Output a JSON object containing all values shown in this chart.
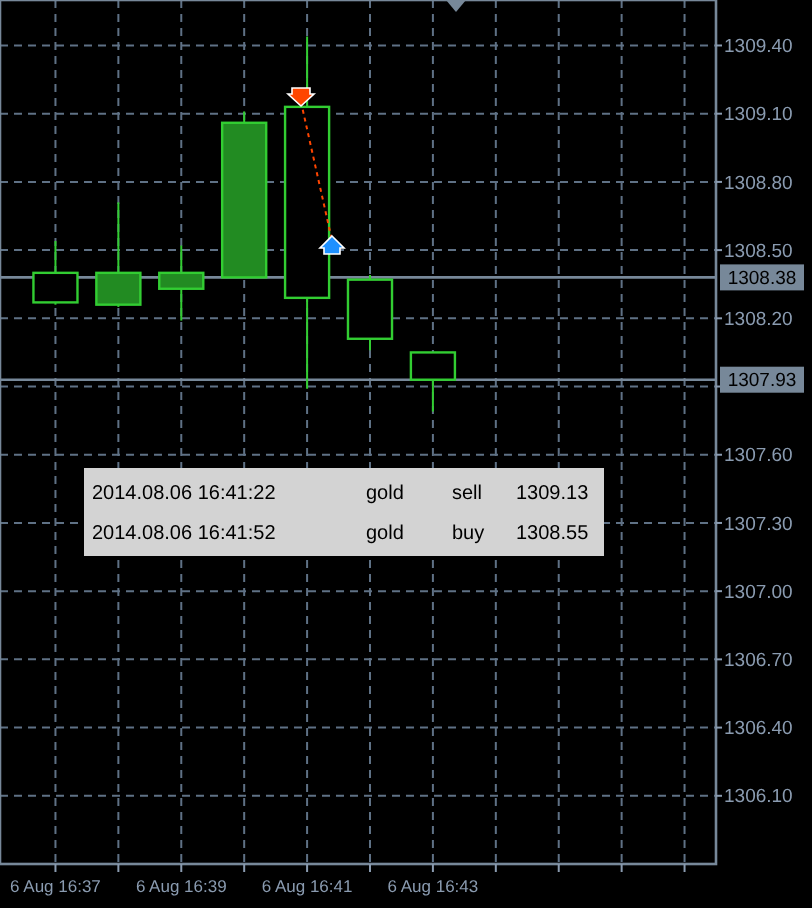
{
  "chart_data": {
    "type": "candlestick",
    "categories": [
      "6 Aug 16:37",
      null,
      "6 Aug 16:39",
      null,
      "6 Aug 16:41",
      null,
      "6 Aug 16:43",
      null,
      null,
      null,
      null
    ],
    "ohlc": [
      [
        1308.4,
        1308.54,
        1308.26,
        1308.27
      ],
      [
        1308.26,
        1308.71,
        1308.25,
        1308.4
      ],
      [
        1308.33,
        1308.52,
        1308.19,
        1308.4
      ],
      [
        1308.38,
        1309.11,
        1308.38,
        1309.06
      ],
      [
        1309.13,
        1309.44,
        1307.89,
        1308.29
      ],
      [
        1308.37,
        1308.39,
        1308.06,
        1308.11
      ],
      [
        1308.05,
        1308.05,
        1307.79,
        1307.93
      ],
      null,
      null,
      null,
      null
    ],
    "colors": [
      "#000000",
      "#228b22",
      "#228b22",
      "#228b22",
      "#000000",
      "#000000",
      "#000000",
      null,
      null,
      null,
      null
    ],
    "ylim": [
      1305.8,
      1309.6
    ],
    "yticks": [
      {
        "value": 1306.1,
        "label": "1306.10"
      },
      {
        "value": 1306.4,
        "label": "1306.40"
      },
      {
        "value": 1306.7,
        "label": "1306.70"
      },
      {
        "value": 1307.0,
        "label": "1307.00"
      },
      {
        "value": 1307.3,
        "label": "1307.30"
      },
      {
        "value": 1307.6,
        "label": "1307.60"
      },
      {
        "value": 1307.9,
        "label": null
      },
      {
        "value": 1308.2,
        "label": "1308.20"
      },
      {
        "value": 1308.5,
        "label": "1308.50"
      },
      {
        "value": 1308.8,
        "label": "1308.80"
      },
      {
        "value": 1309.1,
        "label": "1309.10"
      },
      {
        "value": 1309.4,
        "label": "1309.40"
      }
    ],
    "grid": true,
    "ref_lines": [
      {
        "axis": "y",
        "value": 1308.38,
        "label": "1308.38",
        "color": "#778899"
      },
      {
        "axis": "y",
        "value": 1307.93,
        "label": "1307.93",
        "color": "#778899"
      }
    ],
    "annotations": [
      "2014.08.06 16:41:22",
      "gold",
      "sell",
      "1309.13",
      "2014.08.06 16:41:52",
      "gold",
      "buy",
      "1308.55"
    ]
  }
}
